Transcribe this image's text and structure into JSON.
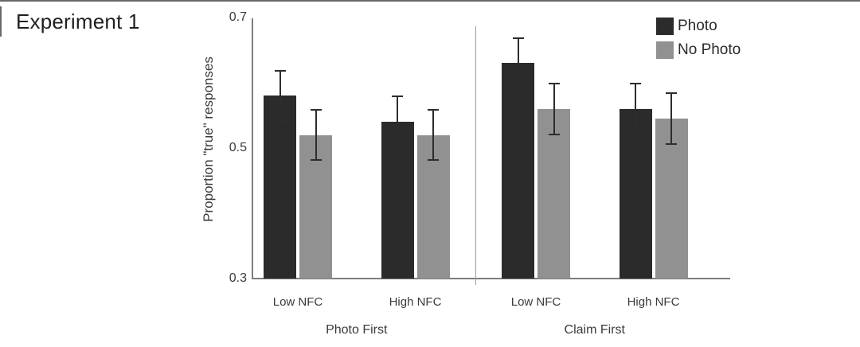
{
  "chart_data": {
    "type": "bar",
    "title": "Experiment 1",
    "ylabel": "Proportion \"true\" responses",
    "ylim": [
      0.3,
      0.7
    ],
    "ytick_labels": [
      "0.7",
      "0.5",
      "0.3"
    ],
    "x_axis": {
      "groups": [
        {
          "label": "Photo First",
          "categories": [
            "Low NFC",
            "High NFC"
          ]
        },
        {
          "label": "Claim First",
          "categories": [
            "Low NFC",
            "High NFC"
          ]
        }
      ]
    },
    "series": [
      {
        "name": "Photo",
        "color": "#2b2b2b",
        "values": [
          0.58,
          0.54,
          0.63,
          0.56
        ],
        "error_bars": [
          0.04,
          0.04,
          0.04,
          0.04
        ]
      },
      {
        "name": "No Photo",
        "color": "#919191",
        "values": [
          0.52,
          0.52,
          0.56,
          0.545
        ],
        "error_bars": [
          0.04,
          0.04,
          0.04,
          0.04
        ]
      }
    ],
    "legend": {
      "position": "top-right",
      "entries": [
        "Photo",
        "No Photo"
      ]
    },
    "grid": false,
    "group_divider": true
  },
  "colors": {
    "axis_line": "#7d7d7d",
    "divider_line": "#9b9b9b",
    "error_bar": "#2d2d2d",
    "rule_line": "#686868"
  }
}
